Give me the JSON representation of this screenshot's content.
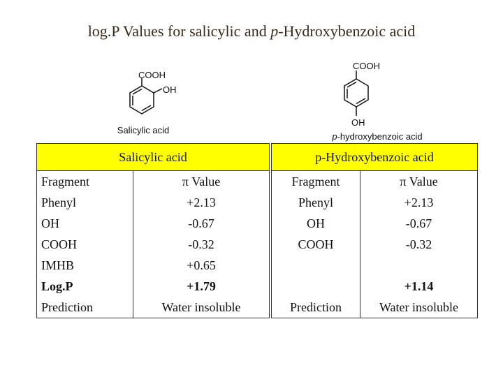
{
  "title": {
    "parts": [
      "log.P Values for salicylic and ",
      "p",
      "-Hydroxybenzoic acid"
    ]
  },
  "structures": [
    {
      "groups": [
        "COOH",
        "OH"
      ],
      "caption": [
        "Salicylic acid"
      ]
    },
    {
      "groups": [
        "COOH",
        "OH"
      ],
      "caption": [
        "p",
        "-hydroxybenzoic acid"
      ]
    }
  ],
  "tables": [
    {
      "header": "Salicylic acid",
      "rows": [
        [
          "Fragment",
          "π Value"
        ],
        [
          "Phenyl",
          "+2.13"
        ],
        [
          "OH",
          "-0.67"
        ],
        [
          "COOH",
          "-0.32"
        ],
        [
          "IMHB",
          "+0.65"
        ],
        [
          "Log.P",
          "+1.79"
        ],
        [
          "Prediction",
          "Water insoluble"
        ]
      ]
    },
    {
      "header": "p-Hydroxybenzoic acid",
      "rows": [
        [
          "Fragment",
          "π Value"
        ],
        [
          "Phenyl",
          "+2.13"
        ],
        [
          "OH",
          "-0.67"
        ],
        [
          "COOH",
          "-0.32"
        ],
        [
          null,
          null
        ],
        [
          null,
          "+1.14"
        ],
        [
          "Prediction",
          "Water insoluble"
        ]
      ]
    }
  ]
}
